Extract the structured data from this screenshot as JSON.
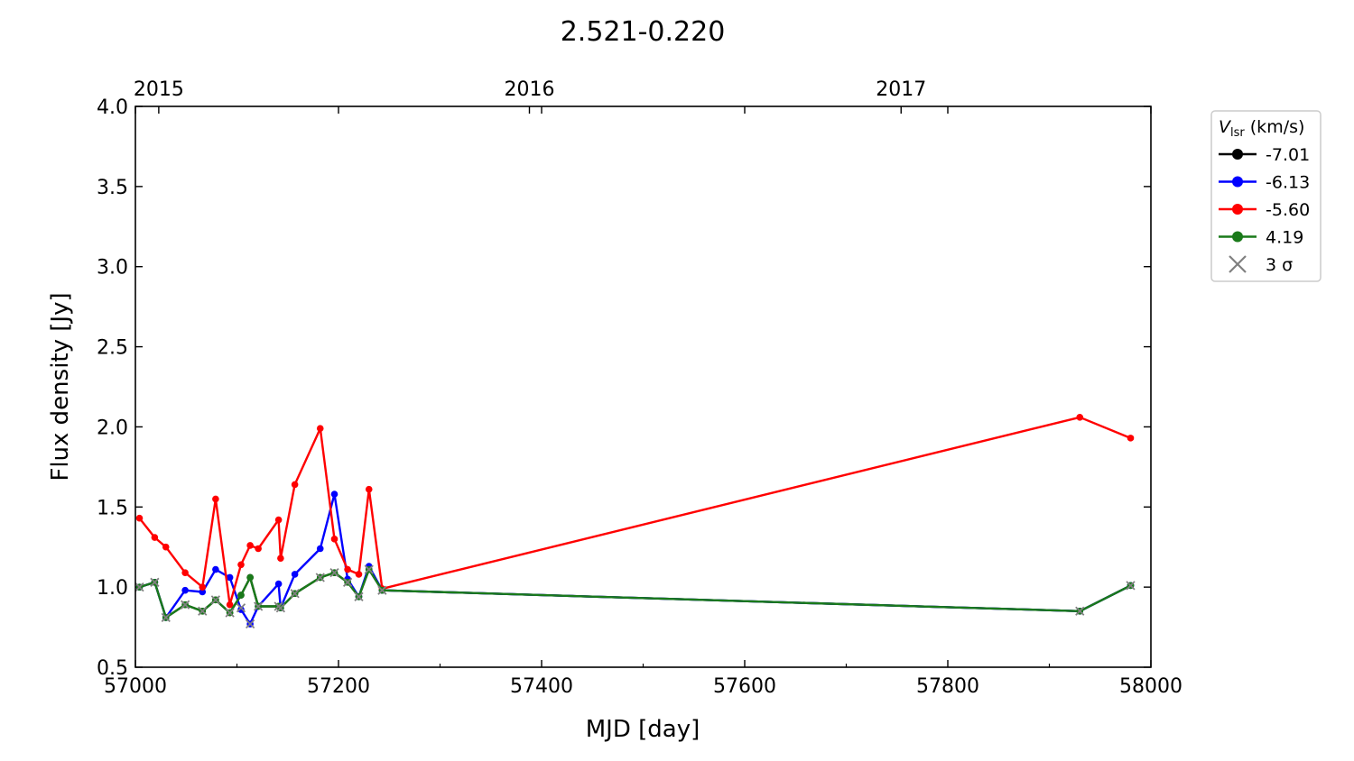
{
  "chart_data": {
    "type": "line",
    "title": "2.521-0.220",
    "xlabel": "MJD [day]",
    "ylabel": "Flux density [Jy]",
    "xlim": [
      57000,
      58000
    ],
    "ylim": [
      0.5,
      4.0
    ],
    "xticks": [
      57000,
      57200,
      57400,
      57600,
      57800,
      58000
    ],
    "xtick_labels": [
      "57000",
      "57200",
      "57400",
      "57600",
      "57800",
      "58000"
    ],
    "yticks": [
      0.5,
      1.0,
      1.5,
      2.0,
      2.5,
      3.0,
      3.5,
      4.0
    ],
    "ytick_labels": [
      "0.5",
      "1.0",
      "1.5",
      "2.0",
      "2.5",
      "3.0",
      "3.5",
      "4.0"
    ],
    "top_axis": {
      "ticks": [
        57023,
        57388,
        57754
      ],
      "labels": [
        "2015",
        "2016",
        "2017"
      ]
    },
    "legend": {
      "title_main": "V",
      "title_sub": "lsr",
      "title_rest": " (km/s)",
      "sigma_label": "3 σ",
      "placement": "outside-right-top"
    },
    "colors": {
      "black": "#000000",
      "blue": "#0000ff",
      "red": "#ff0000",
      "green": "#1a7a1a",
      "sigma": "#808080"
    },
    "series": [
      {
        "name": "-7.01",
        "color": "#000000",
        "x": [
          57004,
          57019,
          57030,
          57049,
          57066,
          57079,
          57093,
          57104,
          57113,
          57121,
          57141,
          57143,
          57157,
          57182,
          57196,
          57209,
          57220,
          57230,
          57243,
          57930,
          57980
        ],
        "y": [
          1.0,
          1.03,
          0.81,
          0.89,
          0.85,
          0.92,
          0.84,
          0.95,
          1.06,
          0.88,
          0.88,
          0.87,
          0.96,
          1.06,
          1.09,
          1.03,
          0.94,
          1.11,
          0.98,
          0.85,
          1.01
        ]
      },
      {
        "name": "-6.13",
        "color": "#0000ff",
        "x": [
          57004,
          57019,
          57030,
          57049,
          57066,
          57079,
          57093,
          57104,
          57113,
          57121,
          57141,
          57143,
          57157,
          57182,
          57196,
          57209,
          57220,
          57230,
          57243,
          57930,
          57980
        ],
        "y": [
          1.0,
          1.03,
          0.81,
          0.98,
          0.97,
          1.11,
          1.06,
          0.86,
          0.77,
          0.88,
          1.02,
          0.87,
          1.08,
          1.24,
          1.58,
          1.05,
          0.94,
          1.13,
          0.98,
          0.85,
          1.01
        ]
      },
      {
        "name": "-5.60",
        "color": "#ff0000",
        "x": [
          57004,
          57019,
          57030,
          57049,
          57066,
          57079,
          57093,
          57104,
          57113,
          57121,
          57141,
          57143,
          57157,
          57182,
          57196,
          57209,
          57220,
          57230,
          57243,
          57930,
          57980
        ],
        "y": [
          1.43,
          1.31,
          1.25,
          1.09,
          1.0,
          1.55,
          0.89,
          1.14,
          1.26,
          1.24,
          1.42,
          1.18,
          1.64,
          1.99,
          1.3,
          1.11,
          1.08,
          1.61,
          0.99,
          2.06,
          1.93
        ]
      },
      {
        "name": "4.19",
        "color": "#1a7a1a",
        "x": [
          57004,
          57019,
          57030,
          57049,
          57066,
          57079,
          57093,
          57104,
          57113,
          57121,
          57141,
          57143,
          57157,
          57182,
          57196,
          57209,
          57220,
          57230,
          57243,
          57930,
          57980
        ],
        "y": [
          1.0,
          1.03,
          0.81,
          0.89,
          0.85,
          0.92,
          0.84,
          0.95,
          1.06,
          0.88,
          0.88,
          0.87,
          0.96,
          1.06,
          1.09,
          1.03,
          0.94,
          1.11,
          0.98,
          0.85,
          1.01
        ]
      }
    ],
    "sigma_markers": {
      "x": [
        57004,
        57019,
        57030,
        57049,
        57066,
        57079,
        57093,
        57104,
        57113,
        57121,
        57141,
        57143,
        57157,
        57182,
        57196,
        57209,
        57220,
        57230,
        57243,
        57930,
        57980
      ],
      "y": [
        1.0,
        1.03,
        0.81,
        0.89,
        0.85,
        0.92,
        0.84,
        0.87,
        0.77,
        0.88,
        0.88,
        0.87,
        0.96,
        1.06,
        1.09,
        1.03,
        0.94,
        1.11,
        0.98,
        0.85,
        1.01
      ]
    }
  }
}
